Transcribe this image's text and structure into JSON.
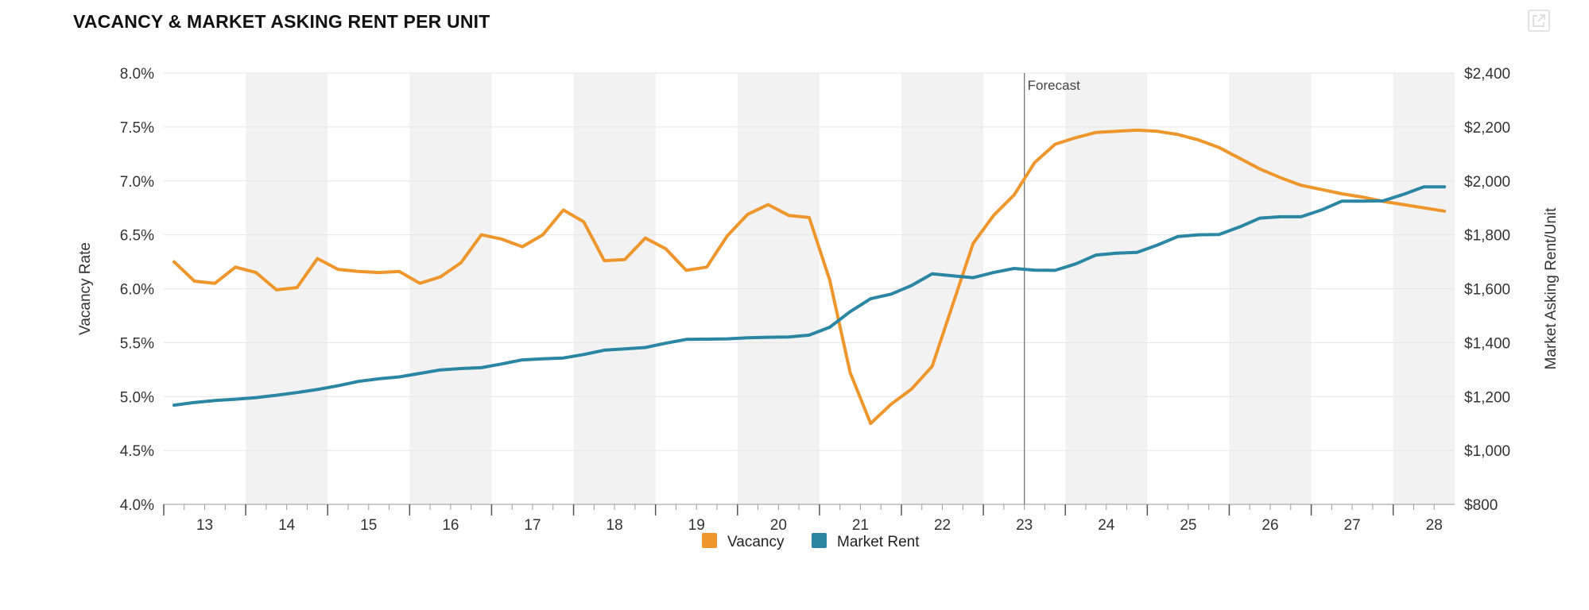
{
  "title": "VACANCY & MARKET ASKING RENT PER UNIT",
  "expand_icon": "expand-icon",
  "colors": {
    "vacancy": "#ee962b",
    "rent": "#2a86a2",
    "band": "#f2f2f2",
    "grid": "#e6e6e6",
    "axis": "#999999",
    "forecast_line": "#777777"
  },
  "chart_data": {
    "type": "line",
    "forecast_label": "Forecast",
    "forecast_at": 23,
    "x_ticks": [
      "13",
      "14",
      "15",
      "16",
      "17",
      "18",
      "19",
      "20",
      "21",
      "22",
      "23",
      "24",
      "25",
      "26",
      "27",
      "28"
    ],
    "xlim": [
      12.5,
      28.25
    ],
    "y_left": {
      "label": "Vacancy Rate",
      "lim": [
        4.0,
        8.0
      ],
      "ticks": [
        "4.0%",
        "4.5%",
        "5.0%",
        "5.5%",
        "6.0%",
        "6.5%",
        "7.0%",
        "7.5%",
        "8.0%"
      ]
    },
    "y_right": {
      "label": "Market Asking Rent/Unit",
      "lim": [
        800,
        2400
      ],
      "ticks": [
        "$800",
        "$1,000",
        "$1,200",
        "$1,400",
        "$1,600",
        "$1,800",
        "$2,000",
        "$2,200",
        "$2,400"
      ]
    },
    "legend": {
      "position": "bottom-center",
      "items": [
        "Vacancy",
        "Market Rent"
      ]
    },
    "grid": true,
    "series": [
      {
        "name": "Vacancy",
        "axis": "left",
        "x": [
          12.625,
          12.875,
          13.125,
          13.375,
          13.625,
          13.875,
          14.125,
          14.375,
          14.625,
          14.875,
          15.125,
          15.375,
          15.625,
          15.875,
          16.125,
          16.375,
          16.625,
          16.875,
          17.125,
          17.375,
          17.625,
          17.875,
          18.125,
          18.375,
          18.625,
          18.875,
          19.125,
          19.375,
          19.625,
          19.875,
          20.125,
          20.375,
          20.625,
          20.875,
          21.125,
          21.375,
          21.625,
          21.875,
          22.125,
          22.375,
          22.625,
          22.875,
          23.125,
          23.375,
          23.625,
          23.875,
          24.125,
          24.375,
          24.625,
          24.875,
          25.125,
          25.375,
          25.625,
          25.875,
          26.125,
          26.375,
          26.625,
          26.875,
          27.125,
          27.375,
          27.625,
          27.875,
          28.125
        ],
        "values": [
          6.25,
          6.07,
          6.05,
          6.2,
          6.15,
          5.99,
          6.01,
          6.28,
          6.18,
          6.16,
          6.15,
          6.16,
          6.05,
          6.11,
          6.24,
          6.5,
          6.46,
          6.39,
          6.5,
          6.73,
          6.62,
          6.26,
          6.27,
          6.47,
          6.37,
          6.17,
          6.2,
          6.49,
          6.69,
          6.78,
          6.68,
          6.66,
          6.08,
          5.22,
          4.75,
          4.93,
          5.07,
          5.28,
          5.85,
          6.42,
          6.68,
          6.87,
          7.17,
          7.34,
          7.4,
          7.45,
          7.46,
          7.47,
          7.46,
          7.43,
          7.38,
          7.31,
          7.21,
          7.11,
          7.03,
          6.96,
          6.92,
          6.88,
          6.85,
          6.81,
          6.78,
          6.75,
          6.72
        ]
      },
      {
        "name": "Market Rent",
        "axis": "right",
        "x": [
          12.625,
          12.875,
          13.125,
          13.375,
          13.625,
          13.875,
          14.125,
          14.375,
          14.625,
          14.875,
          15.125,
          15.375,
          15.625,
          15.875,
          16.125,
          16.375,
          16.625,
          16.875,
          17.125,
          17.375,
          17.625,
          17.875,
          18.125,
          18.375,
          18.625,
          18.875,
          19.125,
          19.375,
          19.625,
          19.875,
          20.125,
          20.375,
          20.625,
          20.875,
          21.125,
          21.375,
          21.625,
          21.875,
          22.125,
          22.375,
          22.625,
          22.875,
          23.125,
          23.375,
          23.625,
          23.875,
          24.125,
          24.375,
          24.625,
          24.875,
          25.125,
          25.375,
          25.625,
          25.875,
          26.125,
          26.375,
          26.625,
          26.875,
          27.125,
          27.375,
          27.625,
          27.875,
          28.125
        ],
        "values": [
          1168,
          1178,
          1185,
          1190,
          1196,
          1205,
          1215,
          1226,
          1240,
          1256,
          1266,
          1273,
          1286,
          1299,
          1304,
          1307,
          1321,
          1336,
          1340,
          1343,
          1356,
          1372,
          1377,
          1382,
          1398,
          1412,
          1413,
          1414,
          1418,
          1420,
          1421,
          1428,
          1457,
          1515,
          1563,
          1580,
          1612,
          1655,
          1648,
          1641,
          1660,
          1675,
          1669,
          1668,
          1692,
          1725,
          1732,
          1735,
          1762,
          1794,
          1800,
          1801,
          1829,
          1862,
          1867,
          1867,
          1892,
          1925,
          1925,
          1926,
          1950,
          1978,
          1978
        ]
      }
    ]
  }
}
